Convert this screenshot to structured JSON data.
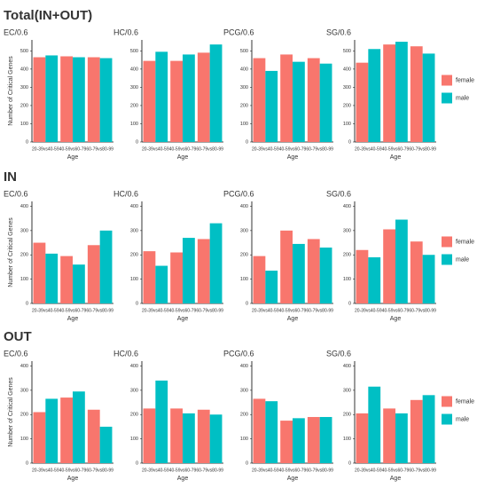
{
  "row_titles": [
    "Total(IN+OUT)",
    "IN",
    "OUT"
  ],
  "chart_data": [
    {
      "type": "bar",
      "title": "EC/0.6",
      "ylabel": "Number of Critical Genes",
      "xlabel": "Age",
      "categories": [
        "20-39vs40-59",
        "40-59vs60-79",
        "60-79vs80-99"
      ],
      "series": [
        {
          "name": "female",
          "color": "#F8766D",
          "values": [
            465,
            470,
            465
          ]
        },
        {
          "name": "male",
          "color": "#00BFC4",
          "values": [
            475,
            465,
            460
          ]
        }
      ],
      "ylim": [
        0,
        560
      ],
      "yticks": [
        0,
        100,
        200,
        300,
        400,
        500
      ]
    },
    {
      "type": "bar",
      "title": "HC/0.6",
      "xlabel": "Age",
      "categories": [
        "20-39vs40-59",
        "40-59vs60-79",
        "60-79vs80-99"
      ],
      "series": [
        {
          "name": "female",
          "color": "#F8766D",
          "values": [
            445,
            445,
            490
          ]
        },
        {
          "name": "male",
          "color": "#00BFC4",
          "values": [
            495,
            480,
            535
          ]
        }
      ],
      "ylim": [
        0,
        560
      ],
      "yticks": [
        0,
        100,
        200,
        300,
        400,
        500
      ]
    },
    {
      "type": "bar",
      "title": "PCG/0.6",
      "xlabel": "Age",
      "categories": [
        "20-39vs40-59",
        "40-59vs60-79",
        "60-79vs80-99"
      ],
      "series": [
        {
          "name": "female",
          "color": "#F8766D",
          "values": [
            460,
            480,
            460
          ]
        },
        {
          "name": "male",
          "color": "#00BFC4",
          "values": [
            390,
            440,
            430
          ]
        }
      ],
      "ylim": [
        0,
        560
      ],
      "yticks": [
        0,
        100,
        200,
        300,
        400,
        500
      ]
    },
    {
      "type": "bar",
      "title": "SG/0.6",
      "xlabel": "Age",
      "legend": "right",
      "categories": [
        "20-39vs40-59",
        "40-59vs60-79",
        "60-79vs80-99"
      ],
      "series": [
        {
          "name": "female",
          "color": "#F8766D",
          "values": [
            435,
            535,
            525
          ]
        },
        {
          "name": "male",
          "color": "#00BFC4",
          "values": [
            510,
            550,
            485
          ]
        }
      ],
      "ylim": [
        0,
        560
      ],
      "yticks": [
        0,
        100,
        200,
        300,
        400,
        500
      ]
    },
    {
      "type": "bar",
      "title": "EC/0.6",
      "ylabel": "Number of Critical Genes",
      "xlabel": "Age",
      "categories": [
        "20-39vs40-59",
        "40-59vs60-79",
        "60-79vs80-99"
      ],
      "series": [
        {
          "name": "female",
          "color": "#F8766D",
          "values": [
            250,
            195,
            240
          ]
        },
        {
          "name": "male",
          "color": "#00BFC4",
          "values": [
            205,
            160,
            300
          ]
        }
      ],
      "ylim": [
        0,
        420
      ],
      "yticks": [
        0,
        100,
        200,
        300,
        400
      ]
    },
    {
      "type": "bar",
      "title": "HC/0.6",
      "xlabel": "Age",
      "categories": [
        "20-39vs40-59",
        "40-59vs60-79",
        "60-79vs80-99"
      ],
      "series": [
        {
          "name": "female",
          "color": "#F8766D",
          "values": [
            215,
            210,
            265
          ]
        },
        {
          "name": "male",
          "color": "#00BFC4",
          "values": [
            155,
            270,
            330
          ]
        }
      ],
      "ylim": [
        0,
        420
      ],
      "yticks": [
        0,
        100,
        200,
        300,
        400
      ]
    },
    {
      "type": "bar",
      "title": "PCG/0.6",
      "xlabel": "Age",
      "categories": [
        "20-39vs40-59",
        "40-59vs60-79",
        "60-79vs80-99"
      ],
      "series": [
        {
          "name": "female",
          "color": "#F8766D",
          "values": [
            195,
            300,
            265
          ]
        },
        {
          "name": "male",
          "color": "#00BFC4",
          "values": [
            135,
            245,
            230
          ]
        }
      ],
      "ylim": [
        0,
        420
      ],
      "yticks": [
        0,
        100,
        200,
        300,
        400
      ]
    },
    {
      "type": "bar",
      "title": "SG/0.6",
      "xlabel": "Age",
      "legend": "right",
      "categories": [
        "20-39vs40-59",
        "40-59vs60-79",
        "60-79vs80-99"
      ],
      "series": [
        {
          "name": "female",
          "color": "#F8766D",
          "values": [
            220,
            305,
            255
          ]
        },
        {
          "name": "male",
          "color": "#00BFC4",
          "values": [
            190,
            345,
            200
          ]
        }
      ],
      "ylim": [
        0,
        420
      ],
      "yticks": [
        0,
        100,
        200,
        300,
        400
      ]
    },
    {
      "type": "bar",
      "title": "EC/0.6",
      "ylabel": "Number of Critical Genes",
      "xlabel": "Age",
      "categories": [
        "20-39vs40-59",
        "40-59vs60-79",
        "60-79vs80-99"
      ],
      "series": [
        {
          "name": "female",
          "color": "#F8766D",
          "values": [
            210,
            270,
            220
          ]
        },
        {
          "name": "male",
          "color": "#00BFC4",
          "values": [
            265,
            295,
            150
          ]
        }
      ],
      "ylim": [
        0,
        420
      ],
      "yticks": [
        0,
        100,
        200,
        300,
        400
      ]
    },
    {
      "type": "bar",
      "title": "HC/0.6",
      "xlabel": "Age",
      "categories": [
        "20-39vs40-59",
        "40-59vs60-79",
        "60-79vs80-99"
      ],
      "series": [
        {
          "name": "female",
          "color": "#F8766D",
          "values": [
            225,
            225,
            220
          ]
        },
        {
          "name": "male",
          "color": "#00BFC4",
          "values": [
            340,
            205,
            200
          ]
        }
      ],
      "ylim": [
        0,
        420
      ],
      "yticks": [
        0,
        100,
        200,
        300,
        400
      ]
    },
    {
      "type": "bar",
      "title": "PCG/0.6",
      "xlabel": "Age",
      "categories": [
        "20-39vs40-59",
        "40-59vs60-79",
        "60-79vs80-99"
      ],
      "series": [
        {
          "name": "female",
          "color": "#F8766D",
          "values": [
            265,
            175,
            190
          ]
        },
        {
          "name": "male",
          "color": "#00BFC4",
          "values": [
            255,
            185,
            190
          ]
        }
      ],
      "ylim": [
        0,
        420
      ],
      "yticks": [
        0,
        100,
        200,
        300,
        400
      ]
    },
    {
      "type": "bar",
      "title": "SG/0.6",
      "xlabel": "Age",
      "legend": "right",
      "categories": [
        "20-39vs40-59",
        "40-59vs60-79",
        "60-79vs80-99"
      ],
      "series": [
        {
          "name": "female",
          "color": "#F8766D",
          "values": [
            205,
            225,
            260
          ]
        },
        {
          "name": "male",
          "color": "#00BFC4",
          "values": [
            315,
            205,
            280
          ]
        }
      ],
      "ylim": [
        0,
        420
      ],
      "yticks": [
        0,
        100,
        200,
        300,
        400
      ]
    }
  ]
}
